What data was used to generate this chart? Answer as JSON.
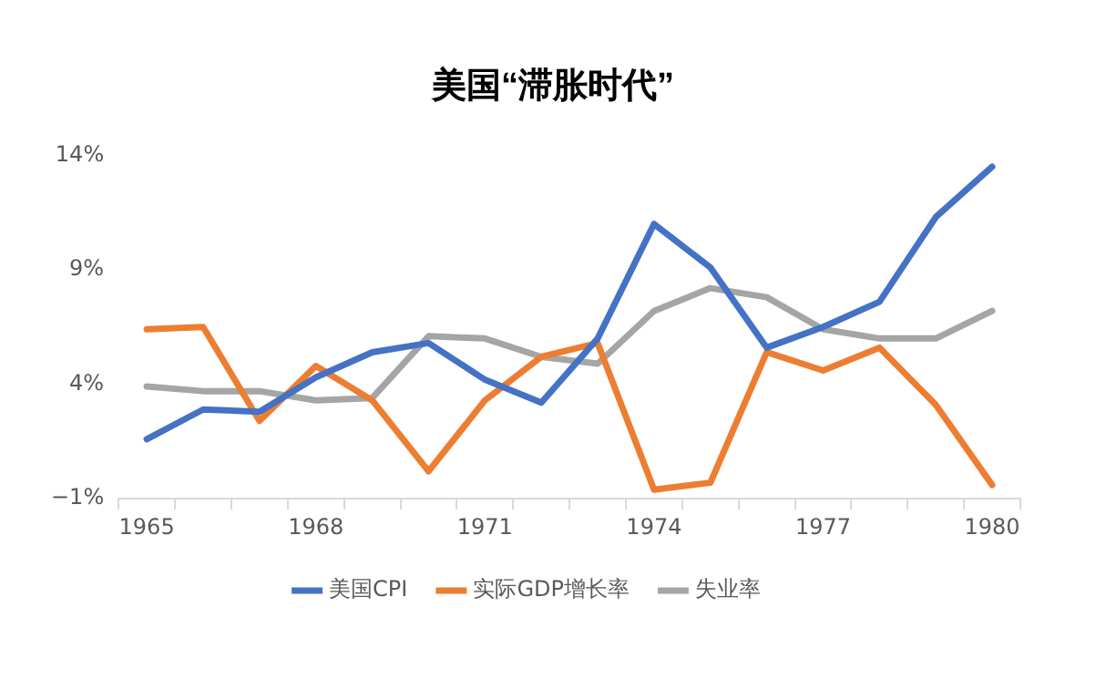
{
  "chart_data": {
    "type": "line",
    "title": "美国“滞胀时代”",
    "categories": [
      "1965",
      null,
      null,
      "1968",
      null,
      null,
      "1971",
      null,
      null,
      "1974",
      null,
      null,
      "1977",
      null,
      null,
      "1980"
    ],
    "series": [
      {
        "name": "美国CPI",
        "color": "#4472c4",
        "values": [
          1.6,
          2.9,
          2.8,
          4.3,
          5.4,
          5.8,
          4.2,
          3.2,
          6.0,
          11.0,
          9.1,
          5.6,
          6.5,
          7.6,
          11.3,
          13.5
        ]
      },
      {
        "name": "实际GDP增长率",
        "color": "#ed7d31",
        "values": [
          6.4,
          6.5,
          2.4,
          4.8,
          3.3,
          0.2,
          3.3,
          5.2,
          5.8,
          -0.6,
          -0.3,
          5.4,
          4.6,
          5.6,
          3.1,
          -0.4
        ]
      },
      {
        "name": "失业率",
        "color": "#a5a5a5",
        "values": [
          3.9,
          3.7,
          3.7,
          3.3,
          3.4,
          6.1,
          6.0,
          5.2,
          4.9,
          7.2,
          8.2,
          7.8,
          6.4,
          6.0,
          6.0,
          7.2
        ]
      }
    ],
    "ylim": [
      -1,
      14
    ],
    "yticks": [
      {
        "value": -1,
        "label": "−1%"
      },
      {
        "value": 4,
        "label": "4%"
      },
      {
        "value": 9,
        "label": "9%"
      },
      {
        "value": 14,
        "label": "14%"
      }
    ],
    "grid": false,
    "legend": "bottom",
    "marker": "none",
    "line_style": "solid"
  }
}
